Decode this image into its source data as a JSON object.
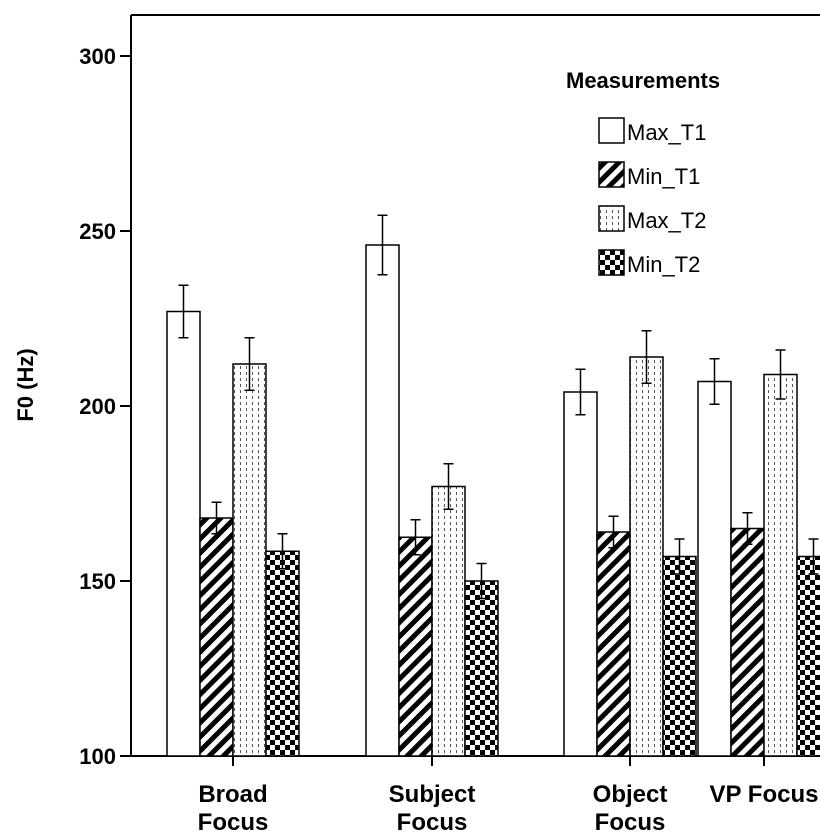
{
  "chart_data": {
    "type": "bar",
    "ylabel": "F0 (Hz)",
    "ylim": [
      100,
      310
    ],
    "yticks": [
      "100",
      "150",
      "200",
      "250",
      "300"
    ],
    "categories": [
      [
        "Broad",
        "Focus"
      ],
      [
        "Subject",
        "Focus"
      ],
      [
        "Object",
        "Focus"
      ],
      [
        "VP Focus"
      ]
    ],
    "legend_title": "Measurements",
    "legend_position": "top-right",
    "series": [
      {
        "name": "Max_T1",
        "pattern": "white",
        "values": [
          227,
          246,
          204,
          207
        ],
        "err": [
          7.5,
          8.5,
          6.5,
          6.5
        ]
      },
      {
        "name": "Min_T1",
        "pattern": "diagonal-stripes",
        "values": [
          168,
          162.5,
          164,
          165
        ],
        "err": [
          4.5,
          5,
          4.5,
          4.5
        ]
      },
      {
        "name": "Max_T2",
        "pattern": "dotted",
        "values": [
          212,
          177,
          214,
          209
        ],
        "err": [
          7.5,
          6.5,
          7.5,
          7
        ]
      },
      {
        "name": "Min_T2",
        "pattern": "checkerboard",
        "values": [
          158.5,
          150,
          157,
          157
        ],
        "err": [
          5,
          5,
          5,
          5
        ]
      }
    ],
    "bar_colors": {
      "stroke": "#000000",
      "fill": "#ffffff",
      "pattern": "#000000"
    }
  }
}
